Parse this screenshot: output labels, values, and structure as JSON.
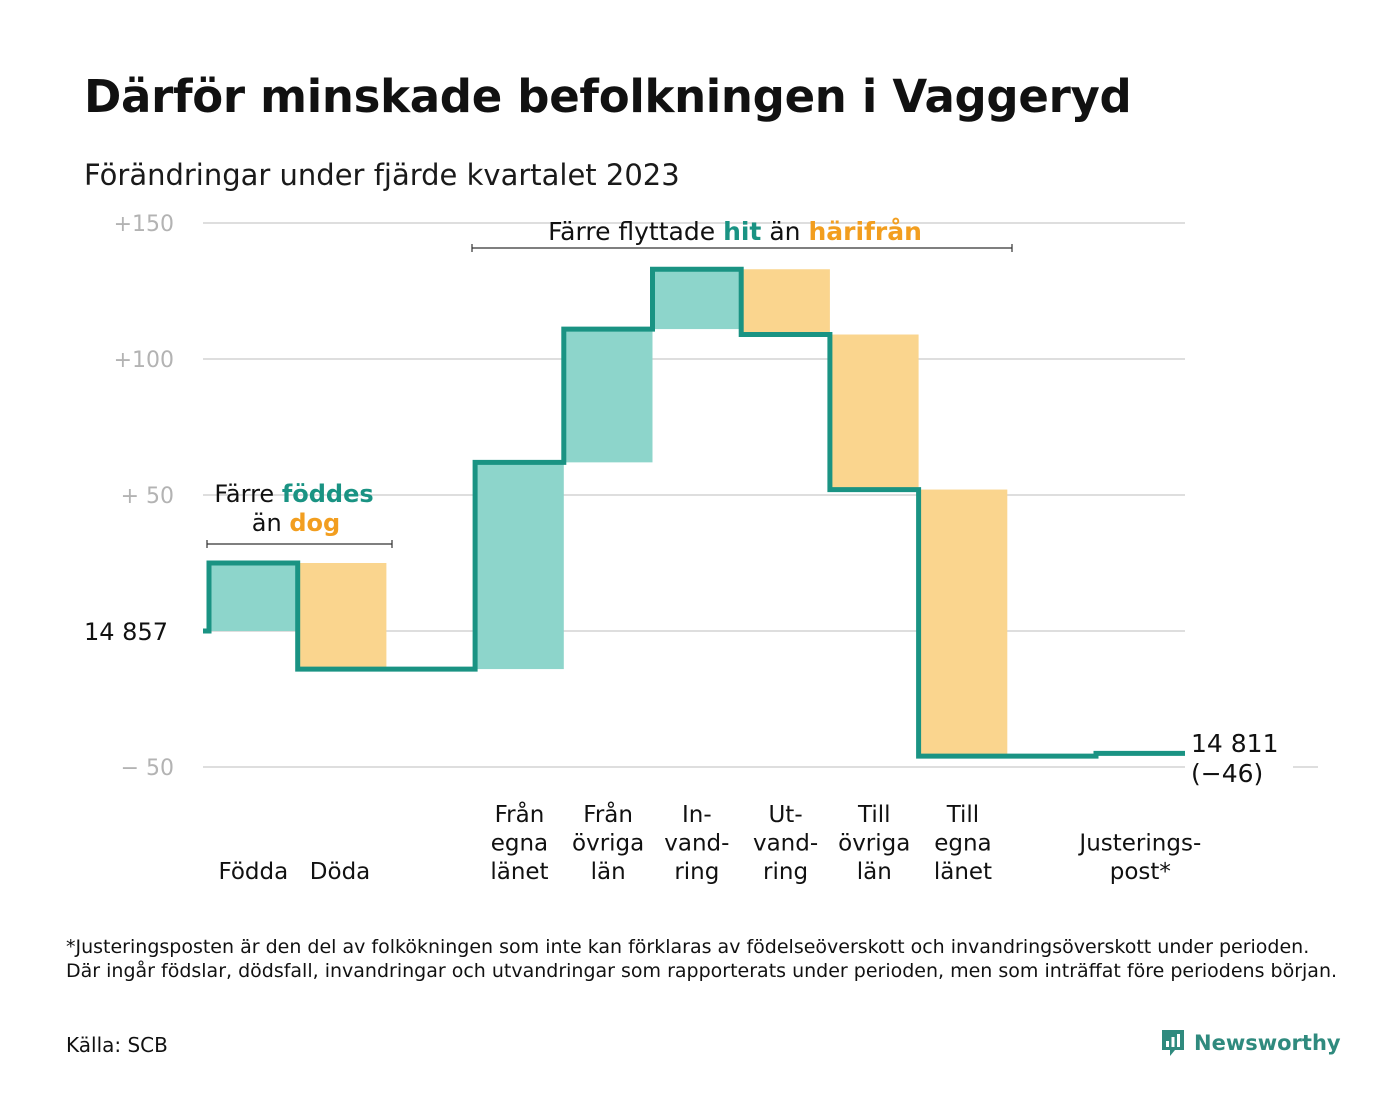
{
  "title": "Därför minskade befolkningen i Vaggeryd",
  "subtitle": "Förändringar under fjärde kvartalet 2023",
  "colors": {
    "in": "#8dd5cb",
    "out": "#fad58e",
    "line": "#1a9383",
    "hit": "#1a9383",
    "harifran": "#f29e1f"
  },
  "chart_data": {
    "type": "waterfall",
    "start_label": "14  857",
    "start": 14857,
    "end_label": [
      "14 811",
      "(−46)"
    ],
    "end": 14811,
    "ylim": [
      -50,
      150
    ],
    "yticks": [
      {
        "value": 150,
        "label": "+150"
      },
      {
        "value": 100,
        "label": "+100"
      },
      {
        "value": 50,
        "label": "+  50"
      },
      {
        "value": 0,
        "label": ""
      },
      {
        "value": -50,
        "label": "−  50"
      }
    ],
    "steps": [
      {
        "label": [
          "",
          "",
          "Födda"
        ],
        "value": 25,
        "kind": "in"
      },
      {
        "label": [
          "",
          "",
          "Döda"
        ],
        "value": -39,
        "kind": "out"
      },
      {
        "label": [
          "Från",
          "egna",
          "länet"
        ],
        "value": 76,
        "kind": "in"
      },
      {
        "label": [
          "Från",
          "övriga",
          "län"
        ],
        "value": 49,
        "kind": "in"
      },
      {
        "label": [
          "In-",
          "vand-",
          "ring"
        ],
        "value": 22,
        "kind": "in"
      },
      {
        "label": [
          "Ut-",
          "vand-",
          "ring"
        ],
        "value": -24,
        "kind": "out"
      },
      {
        "label": [
          "Till",
          "övriga",
          "län"
        ],
        "value": -57,
        "kind": "out"
      },
      {
        "label": [
          "Till",
          "egna",
          "länet"
        ],
        "value": -98,
        "kind": "out"
      },
      {
        "label": [
          "",
          "Justerings-",
          "post*"
        ],
        "value": 1,
        "kind": "adjustment"
      }
    ],
    "annotations": [
      {
        "parts": [
          {
            "text": "Färre ",
            "color": "#111111"
          },
          {
            "text": "föddes",
            "color": "#1a9383"
          }
        ],
        "parts2": [
          {
            "text": "än ",
            "color": "#111111"
          },
          {
            "text": "dog",
            "color": "#f29e1f"
          }
        ]
      },
      {
        "parts": [
          {
            "text": "Färre flyttade ",
            "color": "#111111"
          },
          {
            "text": "hit",
            "color": "#1a9383"
          },
          {
            "text": " än ",
            "color": "#111111"
          },
          {
            "text": "härifrån",
            "color": "#f29e1f"
          }
        ]
      }
    ]
  },
  "footnote": "*Justeringsposten är den del av folkökningen som inte kan förklaras av födelseöverskott och invandringsöverskott under perioden. Där ingår födslar, dödsfall, invandringar och utvandringar som rapporterats under perioden, men som inträffat före periodens början.",
  "source": "Källa: SCB",
  "brand": {
    "name": "Newsworthy",
    "icon": "newsworthy-logo-icon"
  }
}
